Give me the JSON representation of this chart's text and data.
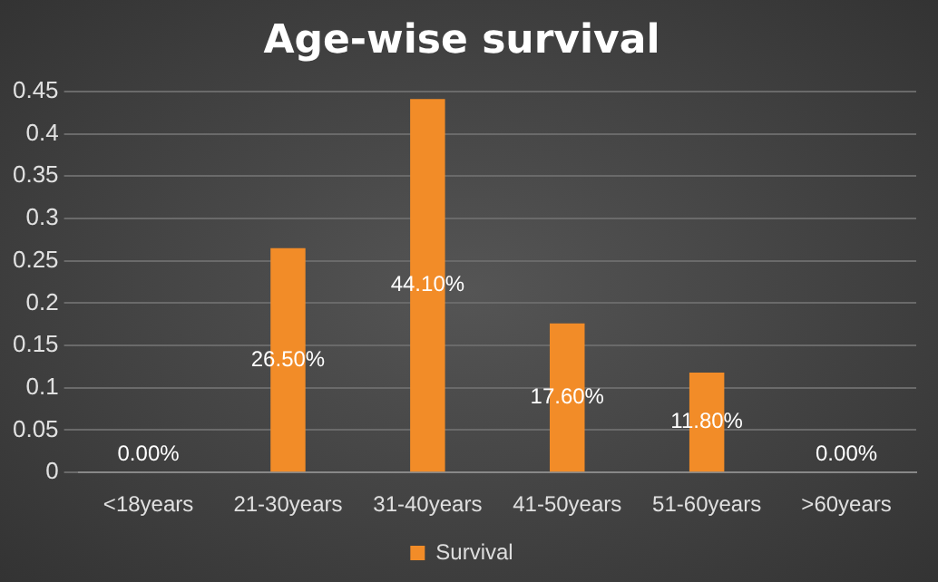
{
  "chart_data": {
    "type": "bar",
    "title": "Age-wise survival",
    "categories": [
      "<18years",
      "21-30years",
      "31-40years",
      "41-50years",
      "51-60years",
      ">60years"
    ],
    "series": [
      {
        "name": "Survival",
        "color": "#f28c28",
        "values": [
          0,
          0.265,
          0.441,
          0.176,
          0.118,
          0
        ],
        "value_labels": [
          "0.00%",
          "26.50%",
          "44.10%",
          "17.60%",
          "11.80%",
          "0.00%"
        ]
      }
    ],
    "ylim": [
      0,
      0.45
    ],
    "yticks": [
      0,
      0.05,
      0.1,
      0.15,
      0.2,
      0.25,
      0.3,
      0.35,
      0.4,
      0.45
    ],
    "grid": "y",
    "legend": "bottom"
  }
}
